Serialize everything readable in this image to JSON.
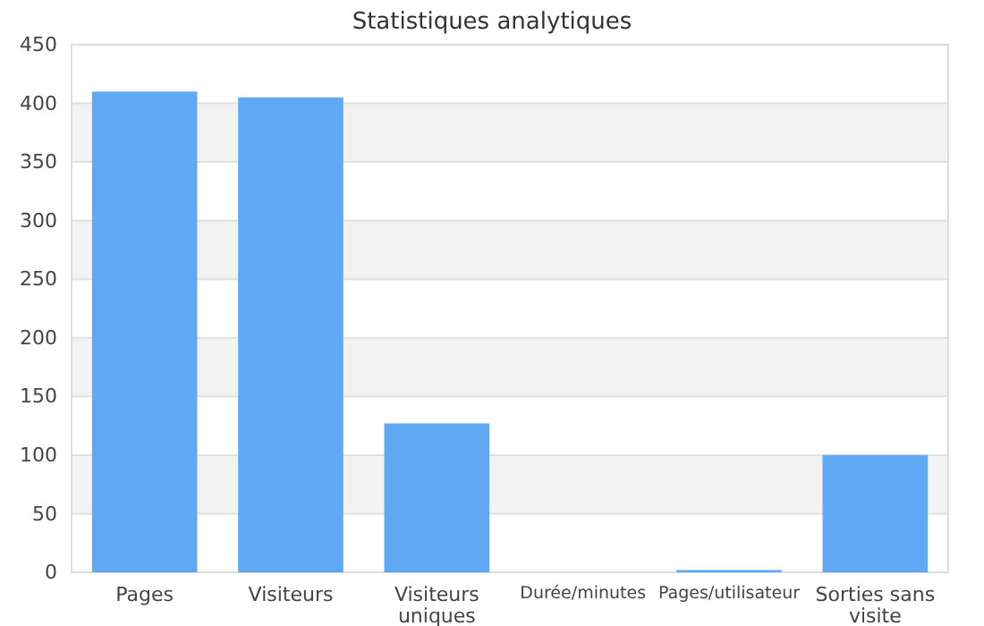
{
  "chart_data": {
    "type": "bar",
    "title": "Statistiques analytiques",
    "categories": [
      "Pages",
      "Visiteurs",
      "Visiteurs uniques",
      "Durée/minutes",
      "Pages/utilisateur",
      "Sorties sans visite"
    ],
    "values": [
      410,
      405,
      127,
      0,
      2,
      100
    ],
    "color": "#60a8f4",
    "ylim": [
      0,
      450
    ],
    "yticks": [
      0,
      50,
      100,
      150,
      200,
      250,
      300,
      350,
      400,
      450
    ],
    "grid": "y"
  }
}
